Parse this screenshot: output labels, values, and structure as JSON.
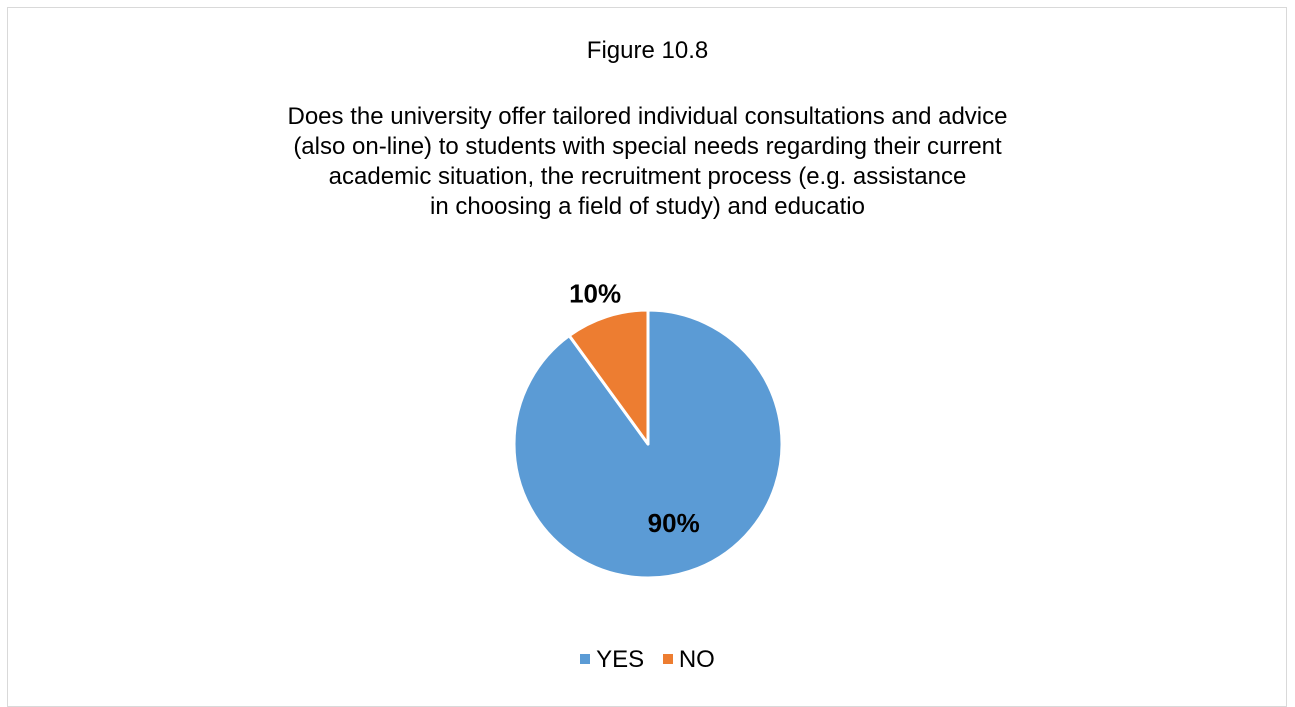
{
  "chart_data": {
    "type": "pie",
    "figure_label": "Figure 10.8",
    "title_lines": [
      "Does the university offer tailored individual consultations and advice",
      "(also on-line) to students with special needs regarding their current",
      "academic situation, the recruitment process (e.g. assistance",
      "in choosing a field of study) and educatio"
    ],
    "slices": [
      {
        "label": "YES",
        "value": 90,
        "data_label": "90%",
        "color": "#5b9bd5"
      },
      {
        "label": "NO",
        "value": 10,
        "data_label": "10%",
        "color": "#ed7d31"
      }
    ],
    "legend_position": "bottom"
  }
}
